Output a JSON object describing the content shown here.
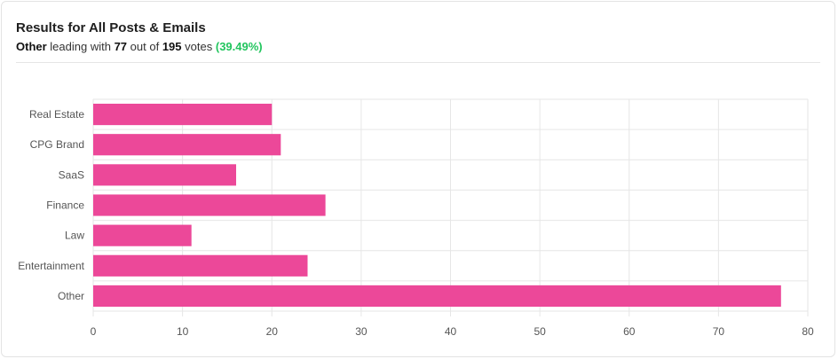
{
  "header": {
    "title": "Results for All Posts & Emails",
    "leader": "Other",
    "text_leading_with": "leading with",
    "leader_votes": "77",
    "text_out_of": "out of",
    "total_votes": "195",
    "text_votes": "votes",
    "percent": "(39.49%)"
  },
  "colors": {
    "bar": "#ec4899",
    "percent": "#22c55e",
    "grid": "#e6e6e6"
  },
  "chart_data": {
    "type": "bar",
    "orientation": "horizontal",
    "categories": [
      "Real Estate",
      "CPG Brand",
      "SaaS",
      "Finance",
      "Law",
      "Entertainment",
      "Other"
    ],
    "values": [
      20,
      21,
      16,
      26,
      11,
      24,
      77
    ],
    "xlim": [
      0,
      80
    ],
    "xticks": [
      0,
      10,
      20,
      30,
      40,
      50,
      60,
      70,
      80
    ],
    "grid": true,
    "legend": "none"
  }
}
